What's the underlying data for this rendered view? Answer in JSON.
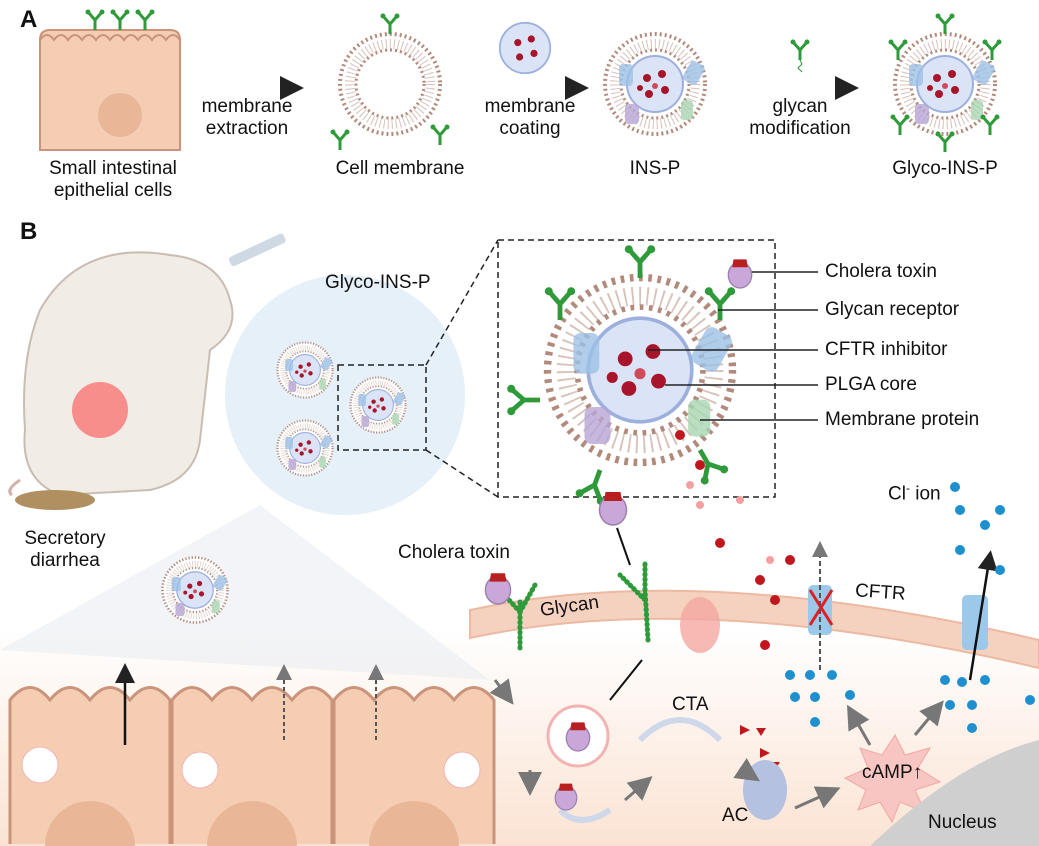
{
  "panel_a": {
    "letter": "A",
    "source_label": [
      "Small intestinal",
      "epithelial cells"
    ],
    "step1": [
      "membrane",
      "extraction"
    ],
    "cell_membrane_label": "Cell membrane",
    "step2": [
      "membrane",
      "coating"
    ],
    "insp_label": "INS-P",
    "step3": [
      "glycan",
      "modification"
    ],
    "glyco_label": "Glyco-INS-P"
  },
  "panel_b": {
    "letter": "B",
    "glyco_label": "Glyco-INS-P",
    "legend": [
      "Cholera toxin",
      "Glycan receptor",
      "CFTR inhibitor",
      "PLGA core",
      "Membrane protein"
    ],
    "disease_label": [
      "Secretory",
      "diarrhea"
    ],
    "cholera_toxin": "Cholera toxin",
    "glycan": "Glycan",
    "cftr": "CFTR",
    "cl_ion": "Cl",
    "cl_ion_sup": "-",
    "cl_ion_suffix": " ion",
    "cta": "CTA",
    "ac": "AC",
    "camp": "cAMP",
    "camp_arrow": "↑",
    "nucleus": "Nucleus"
  },
  "colors": {
    "glycan": "#2e9a3a",
    "toxin": "#c9a7d8",
    "toxin_a": "#b8201f",
    "membrane": "#a77b6c",
    "cl": "#1e8fcf",
    "inhibitor": "#c0171f",
    "cell": "#f5cdb3"
  }
}
